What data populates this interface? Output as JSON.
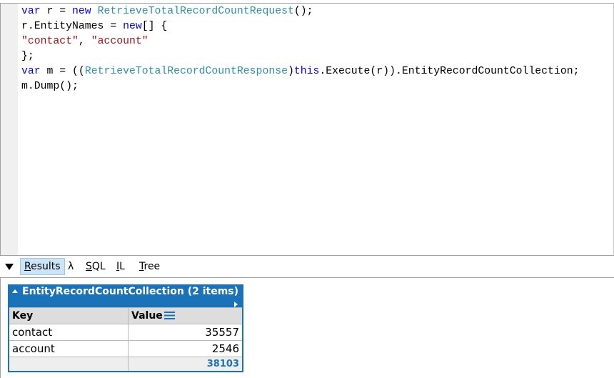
{
  "editor": {
    "lines": [
      [
        {
          "t": "var",
          "c": "kw"
        },
        {
          "t": " r = "
        },
        {
          "t": "new",
          "c": "kw"
        },
        {
          "t": " "
        },
        {
          "t": "RetrieveTotalRecordCountRequest",
          "c": "ty"
        },
        {
          "t": "();"
        }
      ],
      [
        {
          "t": "r.EntityNames = "
        },
        {
          "t": "new",
          "c": "kw"
        },
        {
          "t": "[] {"
        }
      ],
      [
        {
          "t": "\"contact\"",
          "c": "str"
        },
        {
          "t": ", "
        },
        {
          "t": "\"account\"",
          "c": "str"
        }
      ],
      [
        {
          "t": "};"
        }
      ],
      [
        {
          "t": "var",
          "c": "kw"
        },
        {
          "t": " m = (("
        },
        {
          "t": "RetrieveTotalRecordCountResponse",
          "c": "ty"
        },
        {
          "t": ")"
        },
        {
          "t": "this",
          "c": "kw"
        },
        {
          "t": ".Execute(r)).EntityRecordCountCollection;"
        }
      ],
      [
        {
          "t": "m.Dump();"
        }
      ]
    ]
  },
  "tabs": [
    {
      "label": "Results",
      "active": true
    },
    {
      "label": "λ"
    },
    {
      "label": "SQL"
    },
    {
      "label": "IL"
    },
    {
      "label": "Tree"
    }
  ],
  "results": {
    "title": "EntityRecordCountCollection (2 items)",
    "columns": [
      "Key",
      "Value"
    ],
    "rows": [
      {
        "key": "contact",
        "value": "35557"
      },
      {
        "key": "account",
        "value": "2546"
      }
    ],
    "total": "38103",
    "accent": "#1a73b8"
  }
}
